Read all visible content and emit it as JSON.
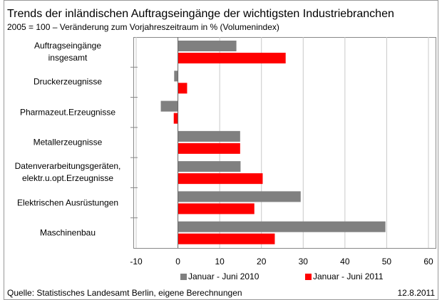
{
  "chart_data": {
    "type": "hbar",
    "title": "Trends der inländischen Auftragseingänge der wichtigsten Industriebranchen",
    "subtitle": "2005 = 100 – Veränderung zum Vorjahreszeitraum in % (Volumenindex)",
    "categories": [
      "Auftragseingänge\ninsgesamt",
      "Druckerzeugnisse",
      "Pharmazeut.Erzeugnisse",
      "Metallerzeugnisse",
      "Datenverarbeitungsgeräten,\nelektr.u.opt.Erzeugnisse",
      "Elektrischen Ausrüstungen",
      "Maschinenbau"
    ],
    "series": [
      {
        "name": "Januar - Juni 2010",
        "color": "#808080",
        "values": [
          14.0,
          -0.9,
          -4.1,
          14.9,
          15.0,
          29.4,
          49.7
        ]
      },
      {
        "name": "Januar - Juni 2011",
        "color": "#ff0000",
        "values": [
          25.8,
          2.2,
          -1.0,
          14.9,
          20.3,
          18.3,
          23.2
        ]
      }
    ],
    "xlim": [
      -10,
      60
    ],
    "xticks": [
      -10,
      0,
      10,
      20,
      30,
      40,
      50,
      60
    ],
    "grid": true,
    "legend": "bottom",
    "source": "Quelle: Statistisches Landesamt Berlin, eigene Berechnungen",
    "date": "12.8.2011"
  }
}
